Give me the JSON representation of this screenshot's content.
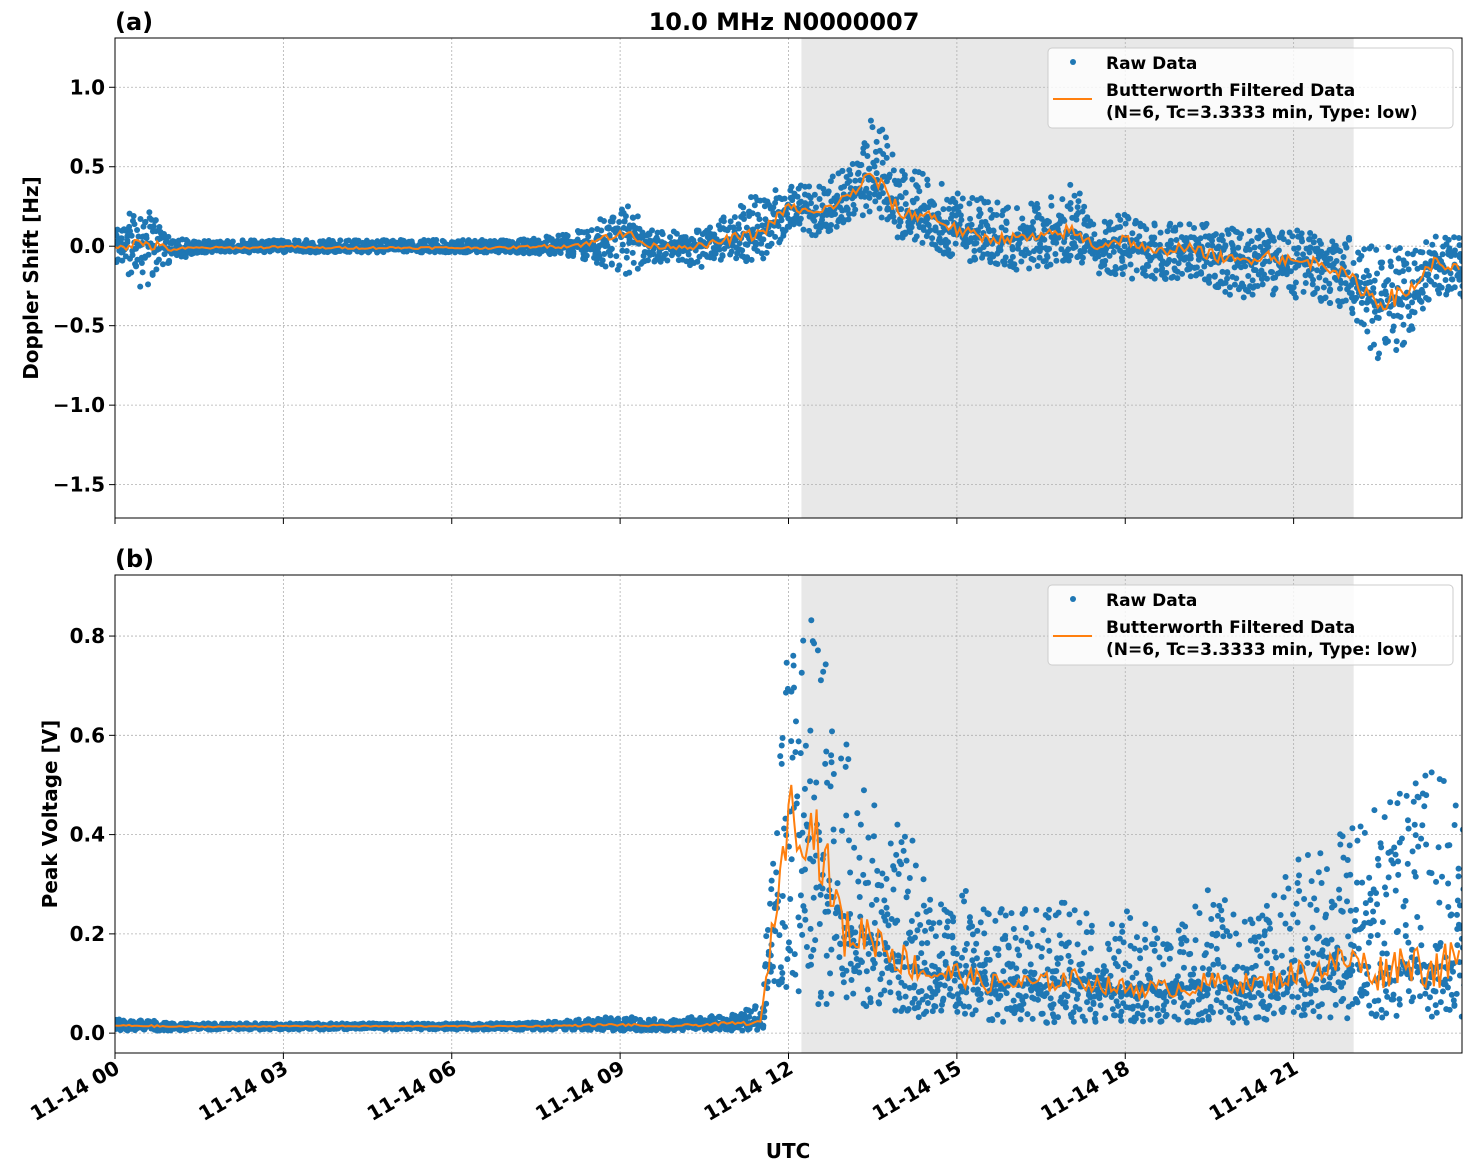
{
  "title": "10.0 MHz N0000007",
  "xlabel": "UTC",
  "x_tick_labels": [
    "11-14 00",
    "11-14 03",
    "11-14 06",
    "11-14 09",
    "11-14 12",
    "11-14 15",
    "11-14 18",
    "11-14 21"
  ],
  "x_tick_hours": [
    0,
    3,
    6,
    9,
    12,
    15,
    18,
    21
  ],
  "x_range_hours": [
    0,
    24
  ],
  "shaded_region_hours": [
    12.23,
    22.07
  ],
  "colors": {
    "raw": "#1f77b4",
    "filtered": "#ff7f0e",
    "shade": "#e8e8e8",
    "grid": "#b0b0b0"
  },
  "legend": {
    "raw": "Raw Data",
    "filtered_line1": "Butterworth Filtered Data",
    "filtered_line2": "(N=6, Tc=3.3333 min, Type: low)",
    "placement": "upper right"
  },
  "chart_data": [
    {
      "type": "scatter+line",
      "panel_label": "(a)",
      "ylabel": "Doppler Shift [Hz]",
      "ylim": [
        -1.71,
        1.31
      ],
      "y_ticks": [
        1.0,
        0.5,
        0.0,
        -0.5,
        -1.0,
        -1.5
      ],
      "y_tick_labels": [
        "1.0",
        "0.5",
        "0.0",
        "−0.5",
        "−1.0",
        "−1.5"
      ],
      "grid": true,
      "x_hours": [
        0,
        0.5,
        1,
        1.5,
        2,
        2.5,
        3,
        3.5,
        4,
        4.5,
        5,
        5.5,
        6,
        6.5,
        7,
        7.5,
        8,
        8.5,
        9,
        9.5,
        10,
        10.5,
        11,
        11.5,
        12,
        12.5,
        13,
        13.5,
        14,
        14.5,
        15,
        15.5,
        16,
        16.5,
        17,
        17.5,
        18,
        18.5,
        19,
        19.5,
        20,
        20.5,
        21,
        21.5,
        22,
        22.5,
        23,
        23.5,
        24
      ],
      "filtered": [
        0.0,
        0.02,
        -0.02,
        -0.01,
        -0.01,
        -0.01,
        0.0,
        -0.01,
        -0.01,
        -0.01,
        -0.01,
        -0.01,
        -0.01,
        -0.01,
        -0.01,
        0.0,
        0.0,
        0.02,
        0.1,
        0.0,
        0.0,
        0.0,
        0.05,
        0.08,
        0.25,
        0.2,
        0.3,
        0.45,
        0.2,
        0.2,
        0.1,
        0.05,
        0.05,
        0.05,
        0.1,
        0.0,
        0.05,
        -0.05,
        0.0,
        -0.05,
        -0.1,
        -0.05,
        -0.1,
        -0.1,
        -0.2,
        -0.35,
        -0.3,
        -0.1,
        -0.15
      ],
      "raw_low": [
        -0.12,
        -0.28,
        -0.1,
        -0.04,
        -0.04,
        -0.04,
        -0.04,
        -0.04,
        -0.04,
        -0.04,
        -0.04,
        -0.04,
        -0.04,
        -0.04,
        -0.04,
        -0.05,
        -0.06,
        -0.1,
        -0.2,
        -0.1,
        -0.1,
        -0.15,
        -0.1,
        -0.1,
        0.1,
        0.05,
        0.15,
        0.2,
        0.0,
        0.0,
        -0.1,
        -0.1,
        -0.15,
        -0.15,
        -0.1,
        -0.2,
        -0.2,
        -0.25,
        -0.2,
        -0.25,
        -0.35,
        -0.3,
        -0.35,
        -0.35,
        -0.4,
        -0.75,
        -0.6,
        -0.3,
        -0.35
      ],
      "raw_high": [
        0.12,
        0.3,
        0.05,
        0.04,
        0.04,
        0.04,
        0.04,
        0.04,
        0.04,
        0.04,
        0.04,
        0.04,
        0.04,
        0.04,
        0.04,
        0.05,
        0.08,
        0.12,
        0.3,
        0.1,
        0.1,
        0.1,
        0.25,
        0.35,
        0.4,
        0.4,
        0.5,
        0.9,
        0.5,
        0.45,
        0.35,
        0.3,
        0.25,
        0.3,
        0.4,
        0.2,
        0.2,
        0.15,
        0.15,
        0.15,
        0.1,
        0.1,
        0.1,
        0.1,
        0.05,
        0.0,
        0.0,
        0.08,
        0.05
      ]
    },
    {
      "type": "scatter+line",
      "panel_label": "(b)",
      "ylabel": "Peak Voltage [V]",
      "ylim": [
        -0.04,
        0.923
      ],
      "y_ticks": [
        0.0,
        0.2,
        0.4,
        0.6,
        0.8
      ],
      "y_tick_labels": [
        "0.0",
        "0.2",
        "0.4",
        "0.6",
        "0.8"
      ],
      "grid": true,
      "x_hours": [
        0,
        0.5,
        1,
        1.5,
        2,
        2.5,
        3,
        3.5,
        4,
        4.5,
        5,
        5.5,
        6,
        6.5,
        7,
        7.5,
        8,
        8.5,
        9,
        9.5,
        10,
        10.5,
        11,
        11.5,
        12,
        12.5,
        13,
        13.5,
        14,
        14.5,
        15,
        15.5,
        16,
        16.5,
        17,
        17.5,
        18,
        18.5,
        19,
        19.5,
        20,
        20.5,
        21,
        21.5,
        22,
        22.5,
        23,
        23.5,
        24
      ],
      "filtered": [
        0.015,
        0.015,
        0.013,
        0.013,
        0.013,
        0.014,
        0.014,
        0.014,
        0.014,
        0.014,
        0.014,
        0.014,
        0.014,
        0.014,
        0.014,
        0.014,
        0.015,
        0.016,
        0.017,
        0.015,
        0.015,
        0.017,
        0.02,
        0.02,
        0.45,
        0.4,
        0.2,
        0.2,
        0.15,
        0.12,
        0.12,
        0.1,
        0.1,
        0.1,
        0.11,
        0.1,
        0.09,
        0.09,
        0.09,
        0.1,
        0.1,
        0.1,
        0.12,
        0.13,
        0.15,
        0.12,
        0.15,
        0.13,
        0.15
      ],
      "raw_low": [
        0.005,
        0.005,
        0.005,
        0.007,
        0.007,
        0.007,
        0.007,
        0.007,
        0.007,
        0.007,
        0.007,
        0.007,
        0.007,
        0.007,
        0.007,
        0.007,
        0.007,
        0.005,
        0.005,
        0.005,
        0.005,
        0.005,
        0.005,
        0.005,
        0.1,
        0.05,
        0.05,
        0.05,
        0.03,
        0.03,
        0.03,
        0.02,
        0.02,
        0.02,
        0.02,
        0.02,
        0.02,
        0.02,
        0.02,
        0.02,
        0.02,
        0.02,
        0.03,
        0.03,
        0.03,
        0.03,
        0.03,
        0.03,
        0.03
      ],
      "raw_high": [
        0.028,
        0.028,
        0.022,
        0.02,
        0.02,
        0.02,
        0.02,
        0.02,
        0.02,
        0.02,
        0.02,
        0.02,
        0.02,
        0.02,
        0.02,
        0.022,
        0.025,
        0.03,
        0.035,
        0.028,
        0.03,
        0.035,
        0.04,
        0.06,
        0.85,
        0.88,
        0.6,
        0.55,
        0.45,
        0.3,
        0.3,
        0.25,
        0.25,
        0.25,
        0.28,
        0.22,
        0.25,
        0.22,
        0.22,
        0.3,
        0.25,
        0.28,
        0.35,
        0.38,
        0.45,
        0.45,
        0.5,
        0.55,
        0.45
      ]
    }
  ]
}
